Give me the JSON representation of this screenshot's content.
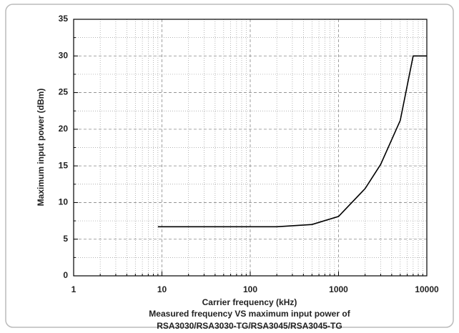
{
  "chart_data": {
    "type": "line",
    "x_label": "Carrier frequency (kHz)",
    "y_label": "Maximum input power (dBm)",
    "caption": [
      "Measured frequency VS maximum input power of",
      "RSA3030/RSA3030-TG/RSA3045/RSA3045-TG"
    ],
    "x": [
      9,
      200,
      500,
      1000,
      2000,
      3000,
      5000,
      7000,
      10000
    ],
    "values": [
      6.7,
      6.7,
      7.0,
      8.1,
      11.9,
      15.2,
      21.2,
      30,
      30
    ],
    "color": "#000000",
    "xscale": "log",
    "grid": true,
    "xlim": [
      1,
      10000
    ],
    "xticks": [
      1,
      10,
      100,
      1000,
      10000
    ],
    "xminorticks": [
      2,
      3,
      4,
      5,
      6,
      7,
      8,
      9,
      20,
      30,
      40,
      50,
      60,
      70,
      80,
      90,
      200,
      300,
      400,
      500,
      600,
      700,
      800,
      900,
      2000,
      3000,
      4000,
      5000,
      6000,
      7000,
      8000,
      9000
    ],
    "ylim": [
      0,
      35
    ],
    "yticks": [
      0,
      5,
      10,
      15,
      20,
      25,
      30,
      35
    ],
    "yminorticks": [
      2.5,
      7.5,
      12.5,
      17.5,
      22.5,
      27.5,
      32.5
    ]
  }
}
